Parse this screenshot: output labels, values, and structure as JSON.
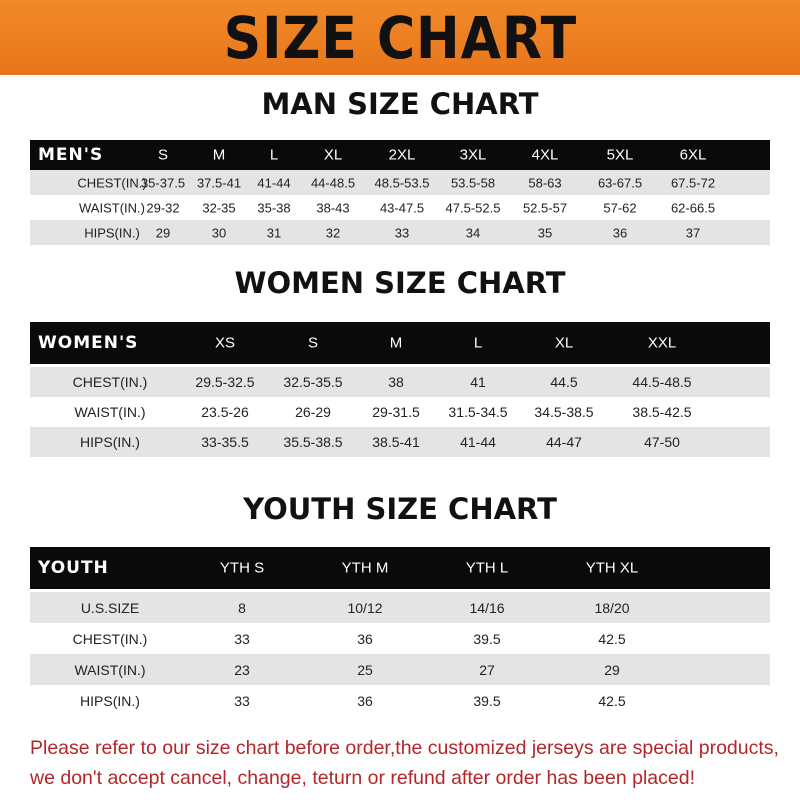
{
  "banner": "SIZE CHART",
  "men": {
    "title": "MAN SIZE CHART",
    "label": "MEN'S",
    "sizes": [
      "S",
      "M",
      "L",
      "XL",
      "2XL",
      "3XL",
      "4XL",
      "5XL",
      "6XL"
    ],
    "rows": [
      {
        "label": "CHEST(IN.)",
        "values": [
          "35-37.5",
          "37.5-41",
          "41-44",
          "44-48.5",
          "48.5-53.5",
          "53.5-58",
          "58-63",
          "63-67.5",
          "67.5-72"
        ]
      },
      {
        "label": "WAIST(IN.)",
        "values": [
          "29-32",
          "32-35",
          "35-38",
          "38-43",
          "43-47.5",
          "47.5-52.5",
          "52.5-57",
          "57-62",
          "62-66.5"
        ]
      },
      {
        "label": "HIPS(IN.)",
        "values": [
          "29",
          "30",
          "31",
          "32",
          "33",
          "34",
          "35",
          "36",
          "37"
        ]
      }
    ]
  },
  "women": {
    "title": "WOMEN SIZE CHART",
    "label": "WOMEN'S",
    "sizes": [
      "XS",
      "S",
      "M",
      "L",
      "XL",
      "XXL"
    ],
    "rows": [
      {
        "label": "CHEST(IN.)",
        "values": [
          "29.5-32.5",
          "32.5-35.5",
          "38",
          "41",
          "44.5",
          "44.5-48.5"
        ]
      },
      {
        "label": "WAIST(IN.)",
        "values": [
          "23.5-26",
          "26-29",
          "29-31.5",
          "31.5-34.5",
          "34.5-38.5",
          "38.5-42.5"
        ]
      },
      {
        "label": "HIPS(IN.)",
        "values": [
          "33-35.5",
          "35.5-38.5",
          "38.5-41",
          "41-44",
          "44-47",
          "47-50"
        ]
      }
    ]
  },
  "youth": {
    "title": "YOUTH SIZE CHART",
    "label": "YOUTH",
    "sizes": [
      "YTH S",
      "YTH M",
      "YTH L",
      "YTH XL"
    ],
    "rows": [
      {
        "label": "U.S.SIZE",
        "values": [
          "8",
          "10/12",
          "14/16",
          "18/20"
        ]
      },
      {
        "label": "CHEST(IN.)",
        "values": [
          "33",
          "36",
          "39.5",
          "42.5"
        ]
      },
      {
        "label": "WAIST(IN.)",
        "values": [
          "23",
          "25",
          "27",
          "29"
        ]
      },
      {
        "label": "HIPS(IN.)",
        "values": [
          "33",
          "36",
          "39.5",
          "42.5"
        ]
      }
    ]
  },
  "note": {
    "line1": "Please refer to our size chart before order,the customized jerseys are special products,",
    "line2": "we don't accept cancel, change, teturn or refund after order has been placed!"
  }
}
